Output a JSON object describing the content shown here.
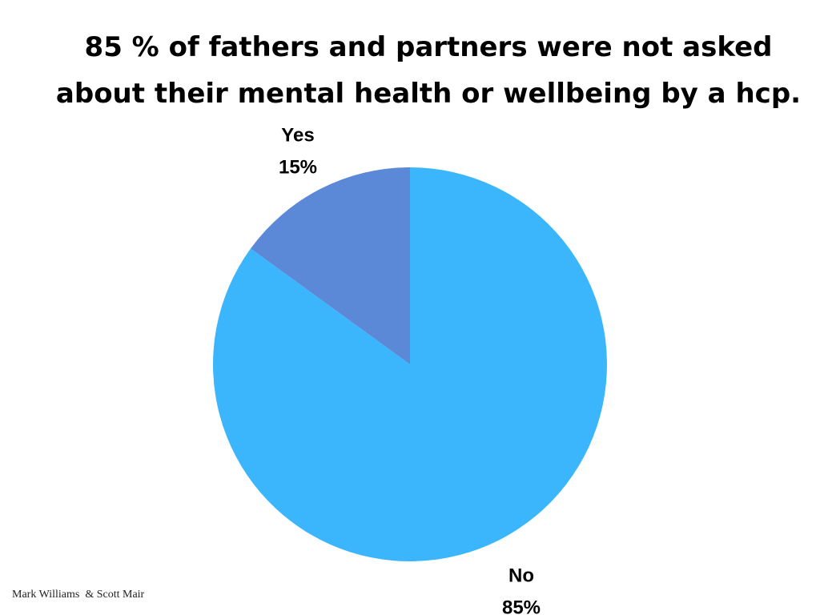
{
  "title": {
    "line1": "85 % of fathers and partners were not asked",
    "line2": "about their mental health or wellbeing by a hcp."
  },
  "footer": {
    "credit": "Mark Williams  & Scott Mair"
  },
  "chart_data": {
    "type": "pie",
    "title": "85 % of fathers and partners were not asked about their mental health or wellbeing by a hcp.",
    "start_angle_deg": -90,
    "direction": "clockwise",
    "slices": [
      {
        "label": "No",
        "value": 85,
        "value_label": "85%",
        "color": "#3bb6fc"
      },
      {
        "label": "Yes",
        "value": 15,
        "value_label": "15%",
        "color": "#5c88d8"
      }
    ]
  }
}
